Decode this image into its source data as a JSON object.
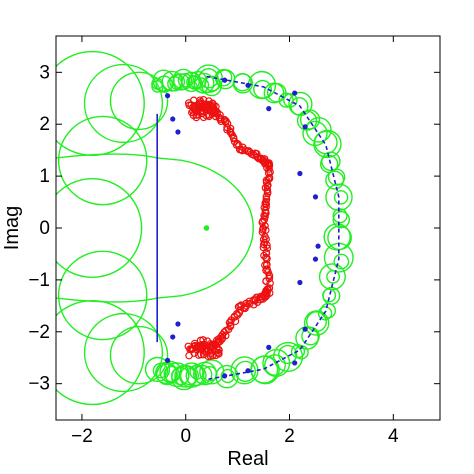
{
  "chart_data": {
    "type": "scatter",
    "xlabel": "Real",
    "ylabel": "Imag",
    "xlim": [
      -2.5,
      4.9
    ],
    "ylim": [
      -3.7,
      3.7
    ],
    "xticks": [
      -2,
      0,
      2,
      4
    ],
    "yticks": [
      -3,
      -2,
      -1,
      0,
      1,
      2,
      3
    ],
    "grid": false,
    "colors": {
      "green": "#22ee22",
      "blue": "#1f1fd0",
      "red": "#ee1111"
    },
    "series": [
      {
        "kind": "blue-line",
        "points": [
          [
            -0.55,
            -2.2
          ],
          [
            -0.55,
            2.2
          ]
        ]
      },
      {
        "kind": "blue-arc",
        "points": [
          [
            0.4,
            2.92
          ],
          [
            1.5,
            2.72
          ],
          [
            2.2,
            2.35
          ],
          [
            2.7,
            1.6
          ],
          [
            2.95,
            0.6
          ],
          [
            2.95,
            -0.6
          ],
          [
            2.7,
            -1.6
          ],
          [
            2.2,
            -2.35
          ],
          [
            1.5,
            -2.72
          ],
          [
            0.4,
            -2.92
          ]
        ]
      },
      {
        "kind": "blue-points",
        "points": [
          [
            -0.35,
            2.55
          ],
          [
            -0.25,
            2.1
          ],
          [
            -0.15,
            1.85
          ],
          [
            0.75,
            2.85
          ],
          [
            1.2,
            2.75
          ],
          [
            1.6,
            2.3
          ],
          [
            2.1,
            2.6
          ],
          [
            2.3,
            1.95
          ],
          [
            2.2,
            1.05
          ],
          [
            2.5,
            0.6
          ],
          [
            2.55,
            -0.35
          ],
          [
            2.5,
            -0.6
          ],
          [
            2.2,
            -1.05
          ],
          [
            2.3,
            -1.95
          ],
          [
            2.1,
            -2.6
          ],
          [
            1.6,
            -2.3
          ],
          [
            1.2,
            -2.75
          ],
          [
            0.75,
            -2.85
          ],
          [
            -0.15,
            -1.85
          ],
          [
            -0.25,
            -2.1
          ],
          [
            -0.35,
            -2.55
          ]
        ]
      },
      {
        "kind": "green-center",
        "points": [
          [
            0.4,
            0.0
          ]
        ]
      },
      {
        "kind": "green-big-circles",
        "circles": [
          [
            -1.8,
            2.4,
            1.0
          ],
          [
            -1.2,
            2.4,
            0.75
          ],
          [
            -0.9,
            2.45,
            0.55
          ],
          [
            -1.6,
            1.3,
            0.85
          ],
          [
            -1.8,
            0.0,
            0.95
          ],
          [
            -1.6,
            -1.3,
            0.85
          ],
          [
            -1.8,
            -2.4,
            1.0
          ],
          [
            -1.2,
            -2.4,
            0.75
          ],
          [
            -0.9,
            -2.45,
            0.55
          ]
        ]
      },
      {
        "kind": "red-curve",
        "points": [
          [
            0.15,
            2.3
          ],
          [
            0.45,
            2.35
          ],
          [
            0.75,
            2.05
          ],
          [
            1.05,
            1.55
          ],
          [
            1.45,
            1.35
          ],
          [
            1.6,
            1.2
          ],
          [
            1.55,
            0.6
          ],
          [
            1.5,
            0.0
          ],
          [
            1.55,
            -0.6
          ],
          [
            1.6,
            -1.2
          ],
          [
            1.45,
            -1.35
          ],
          [
            1.05,
            -1.55
          ],
          [
            0.75,
            -2.05
          ],
          [
            0.45,
            -2.35
          ],
          [
            0.15,
            -2.3
          ]
        ]
      }
    ]
  }
}
